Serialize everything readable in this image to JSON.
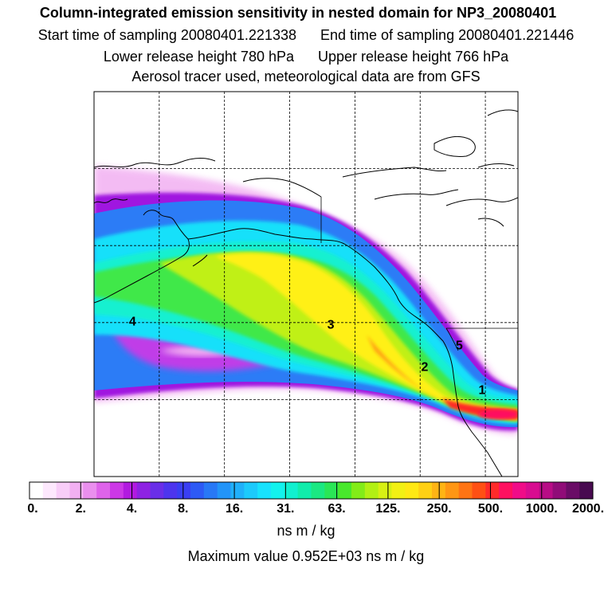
{
  "header": {
    "title": "Column-integrated emission sensitivity in nested domain for NP3_20080401",
    "start_label": "Start time of sampling 20080401.221338",
    "end_label": "End time of sampling 20080401.221446",
    "lower_label": "Lower release height  780 hPa",
    "upper_label": "Upper release height  766 hPa",
    "tracer_line": "Aerosol tracer used, meteorological data are from GFS"
  },
  "colorbar": {
    "units": "ns m / kg",
    "max_line": "Maximum value  0.952E+03 ns m / kg",
    "tick_labels": [
      "0.",
      "2.",
      "4.",
      "8.",
      "16.",
      "31.",
      "63.",
      "125.",
      "250.",
      "500.",
      "1000.",
      "2000."
    ],
    "colors": [
      "#ffffff",
      "#fde8fd",
      "#f8cdf8",
      "#f2b0f2",
      "#ea8fee",
      "#de63ea",
      "#cc38e6",
      "#b21ae0",
      "#8e22e3",
      "#6a2ee8",
      "#4d35ee",
      "#3a3ff3",
      "#2d5af5",
      "#2878f6",
      "#2394f8",
      "#1fb0fa",
      "#1ccafc",
      "#18e2fd",
      "#12f2ee",
      "#10f0cf",
      "#10ecab",
      "#1ae882",
      "#2ae656",
      "#48e82c",
      "#82ec18",
      "#b2f014",
      "#d8f014",
      "#f2f014",
      "#ffe814",
      "#ffd014",
      "#ffb414",
      "#ff9614",
      "#ff7414",
      "#ff5014",
      "#ff2a2a",
      "#ff1060",
      "#f00c88",
      "#d80c90",
      "#b80c86",
      "#900c78",
      "#6a0c66",
      "#480a50"
    ]
  },
  "map_labels": [
    {
      "text": "1",
      "lon": -120.5,
      "lat": 30.7
    },
    {
      "text": "2",
      "lon": -129.3,
      "lat": 33.7
    },
    {
      "text": "3",
      "lon": -143.7,
      "lat": 39.2
    },
    {
      "text": "4",
      "lon": -174.1,
      "lat": 39.6
    },
    {
      "text": "5",
      "lon": -124.0,
      "lat": 36.5
    }
  ],
  "map": {
    "lon_range": [
      -180,
      -115
    ],
    "lat_range": [
      20,
      70
    ],
    "graticule_lons": [
      -170,
      -160,
      -150,
      -140,
      -130,
      -120
    ],
    "graticule_lats": [
      30,
      40,
      50,
      60
    ],
    "colors": {
      "graticule": "#000000",
      "coast": "#000000",
      "frame": "#000000"
    }
  }
}
